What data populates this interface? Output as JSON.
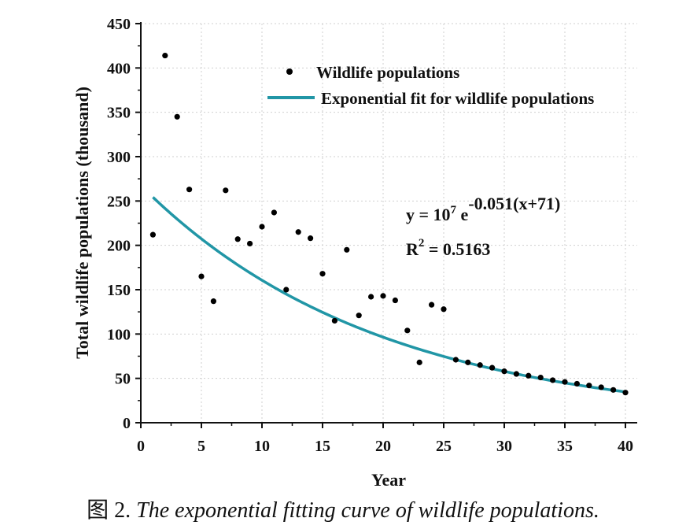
{
  "chart_data": {
    "type": "scatter",
    "title": "",
    "xlabel": "Year",
    "ylabel": "Total wildlife populations (thousand)",
    "xlim": [
      0,
      40
    ],
    "ylim": [
      0,
      450
    ],
    "xticks": [
      0,
      5,
      10,
      15,
      20,
      25,
      30,
      35,
      40
    ],
    "yticks": [
      0,
      50,
      100,
      150,
      200,
      250,
      300,
      350,
      400,
      450
    ],
    "grid": true,
    "legend_position": "top-right",
    "series": [
      {
        "name": "Wildlife populations",
        "kind": "scatter",
        "color": "#000000",
        "x": [
          1,
          2,
          3,
          4,
          5,
          6,
          7,
          8,
          9,
          10,
          11,
          12,
          13,
          14,
          15,
          16,
          17,
          18,
          19,
          20,
          21,
          22,
          23,
          24,
          25,
          26,
          27,
          28,
          29,
          30,
          31,
          32,
          33,
          34,
          35,
          36,
          37,
          38,
          39,
          40
        ],
        "y": [
          212,
          414,
          345,
          263,
          165,
          137,
          262,
          207,
          202,
          221,
          237,
          150,
          215,
          208,
          168,
          115,
          195,
          121,
          142,
          143,
          138,
          104,
          68,
          133,
          128,
          71,
          68,
          65,
          62,
          58,
          55,
          53,
          51,
          48,
          46,
          44,
          42,
          40,
          37,
          34
        ]
      },
      {
        "name": "Exponential fit for wildlife populations",
        "kind": "line",
        "color": "#2196a6",
        "x_start": 1,
        "x_end": 40,
        "equation": {
          "coefficient": 10000000,
          "rate": -0.051,
          "shift": 71
        }
      }
    ],
    "annotations": {
      "equation_base": "y = 10",
      "equation_exp_coef": "7",
      "equation_e": " e",
      "equation_exponent": "-0.051(x+71)",
      "r2_base": "R",
      "r2_exp": "2",
      "r2_value": " = 0.5163"
    }
  },
  "caption": {
    "prefix": "图 2.",
    "text": " The exponential fitting curve of wildlife populations."
  }
}
